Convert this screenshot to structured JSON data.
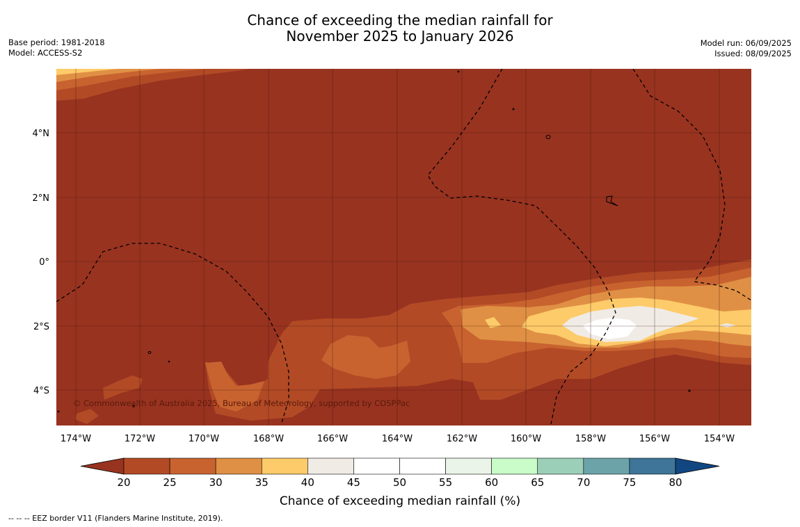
{
  "title_line1": "Chance of exceeding the median rainfall for",
  "title_line2": "November 2025 to January 2026",
  "base_period": "Base period: 1981-2018",
  "model": "Model: ACCESS-S2",
  "model_run": "Model run: 06/09/2025",
  "issued": "Issued: 08/09/2025",
  "copyright": "© Commonwealth of Australia 2025, Bureau of Meteorology, supported by COSPPac",
  "footnote": "--  --  -- EEZ border V11 (Flanders Marine Institute, 2019).",
  "lon_labels": [
    "174°W",
    "172°W",
    "170°W",
    "168°W",
    "166°W",
    "164°W",
    "162°W",
    "160°W",
    "158°W",
    "156°W",
    "154°W"
  ],
  "lat_labels": [
    "4°N",
    "2°N",
    "0°",
    "2°S",
    "4°S"
  ],
  "colorbar": {
    "title": "Chance of exceeding median rainfall (%)",
    "ticks": [
      "20",
      "25",
      "30",
      "35",
      "40",
      "45",
      "50",
      "55",
      "60",
      "65",
      "70",
      "75",
      "80"
    ],
    "colors": [
      "#983320",
      "#b24a26",
      "#c86330",
      "#e09044",
      "#fdcb69",
      "#f0ebe5",
      "#ffffff",
      "#ffffff",
      "#eaf4e8",
      "#c9fcc8",
      "#9ccfb7",
      "#6ba3a9",
      "#3e7599",
      "#124680"
    ]
  }
}
